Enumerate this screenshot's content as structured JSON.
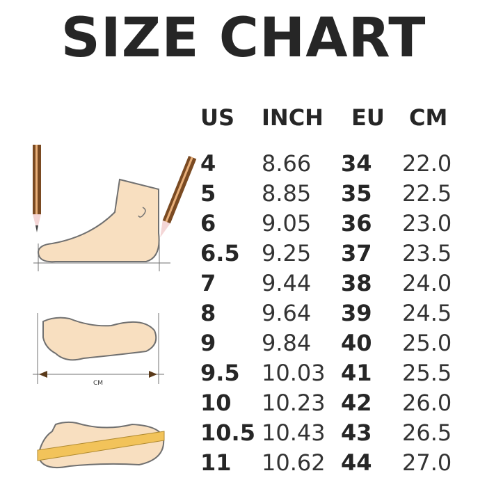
{
  "title": "SIZE CHART",
  "columns": [
    "US",
    "INCH",
    "EU",
    "CM"
  ],
  "rows": [
    [
      "4",
      "8.66",
      "34",
      "22.0"
    ],
    [
      "5",
      "8.85",
      "35",
      "22.5"
    ],
    [
      "6",
      "9.05",
      "36",
      "23.0"
    ],
    [
      "6.5",
      "9.25",
      "37",
      "23.5"
    ],
    [
      "7",
      "9.44",
      "38",
      "24.0"
    ],
    [
      "8",
      "9.64",
      "39",
      "24.5"
    ],
    [
      "9",
      "9.84",
      "40",
      "25.0"
    ],
    [
      "9.5",
      "10.03",
      "41",
      "25.5"
    ],
    [
      "10",
      "10.23",
      "42",
      "26.0"
    ],
    [
      "10.5",
      "10.43",
      "43",
      "26.5"
    ],
    [
      "11",
      "10.62",
      "44",
      "27.0"
    ]
  ],
  "illustration": {
    "measure_label": "CM"
  },
  "colors": {
    "text": "#262626",
    "skin": "#f8dfc0",
    "outline": "#707070",
    "pencil": "#7a4a22",
    "ruler": "#f2c35a"
  }
}
